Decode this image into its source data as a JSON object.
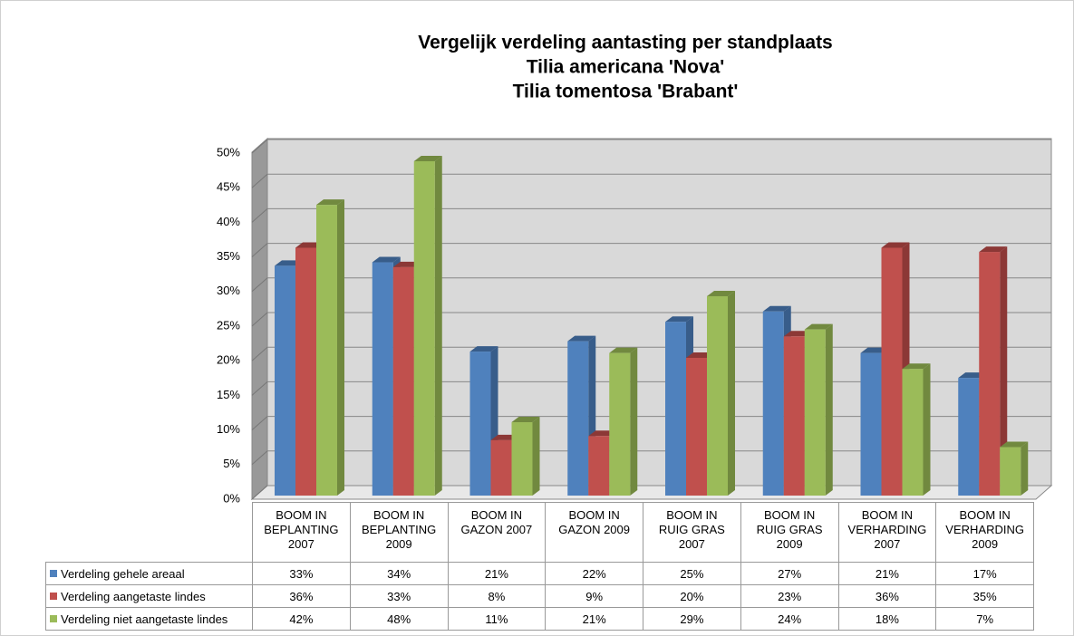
{
  "chart_data": {
    "type": "bar3d",
    "title": [
      "Vergelijk verdeling aantasting per standplaats",
      "Tilia americana 'Nova'",
      "Tilia tomentosa 'Brabant'"
    ],
    "categories": [
      "BOOM IN BEPLANTING 2007",
      "BOOM IN BEPLANTING 2009",
      "BOOM IN GAZON 2007",
      "BOOM IN GAZON 2009",
      "BOOM IN RUIG GRAS 2007",
      "BOOM IN RUIG GRAS 2009",
      "BOOM IN VERHARDING 2007",
      "BOOM IN VERHARDING 2009"
    ],
    "series": [
      {
        "name": "Verdeling gehele areaal",
        "color": "#4f81bd",
        "side_color": "#385d8a",
        "values": [
          33.2,
          33.7,
          20.8,
          22.3,
          25.1,
          26.6,
          20.6,
          17.0
        ],
        "value_labels": [
          "33%",
          "34%",
          "21%",
          "22%",
          "25%",
          "27%",
          "21%",
          "17%"
        ]
      },
      {
        "name": "Verdeling aangetaste lindes",
        "color": "#c0504d",
        "side_color": "#8c3836",
        "values": [
          35.8,
          33.0,
          8.0,
          8.6,
          19.9,
          23.0,
          35.8,
          35.2
        ],
        "value_labels": [
          "36%",
          "33%",
          "8%",
          "9%",
          "20%",
          "23%",
          "36%",
          "35%"
        ]
      },
      {
        "name": "Verdeling niet aangetaste lindes",
        "color": "#9bbb59",
        "side_color": "#71893f",
        "values": [
          42.0,
          48.3,
          10.6,
          20.6,
          28.8,
          24.0,
          18.3,
          7.0
        ],
        "value_labels": [
          "42%",
          "48%",
          "11%",
          "21%",
          "29%",
          "24%",
          "18%",
          "7%"
        ]
      }
    ],
    "ylim": [
      0,
      50
    ],
    "yticks": [
      {
        "value": 0,
        "label": "0%"
      },
      {
        "value": 5,
        "label": "5%"
      },
      {
        "value": 10,
        "label": "10%"
      },
      {
        "value": 15,
        "label": "15%"
      },
      {
        "value": 20,
        "label": "20%"
      },
      {
        "value": 25,
        "label": "25%"
      },
      {
        "value": 30,
        "label": "30%"
      },
      {
        "value": 35,
        "label": "35%"
      },
      {
        "value": 40,
        "label": "40%"
      },
      {
        "value": 45,
        "label": "45%"
      },
      {
        "value": 50,
        "label": "50%"
      }
    ],
    "grid": true
  }
}
